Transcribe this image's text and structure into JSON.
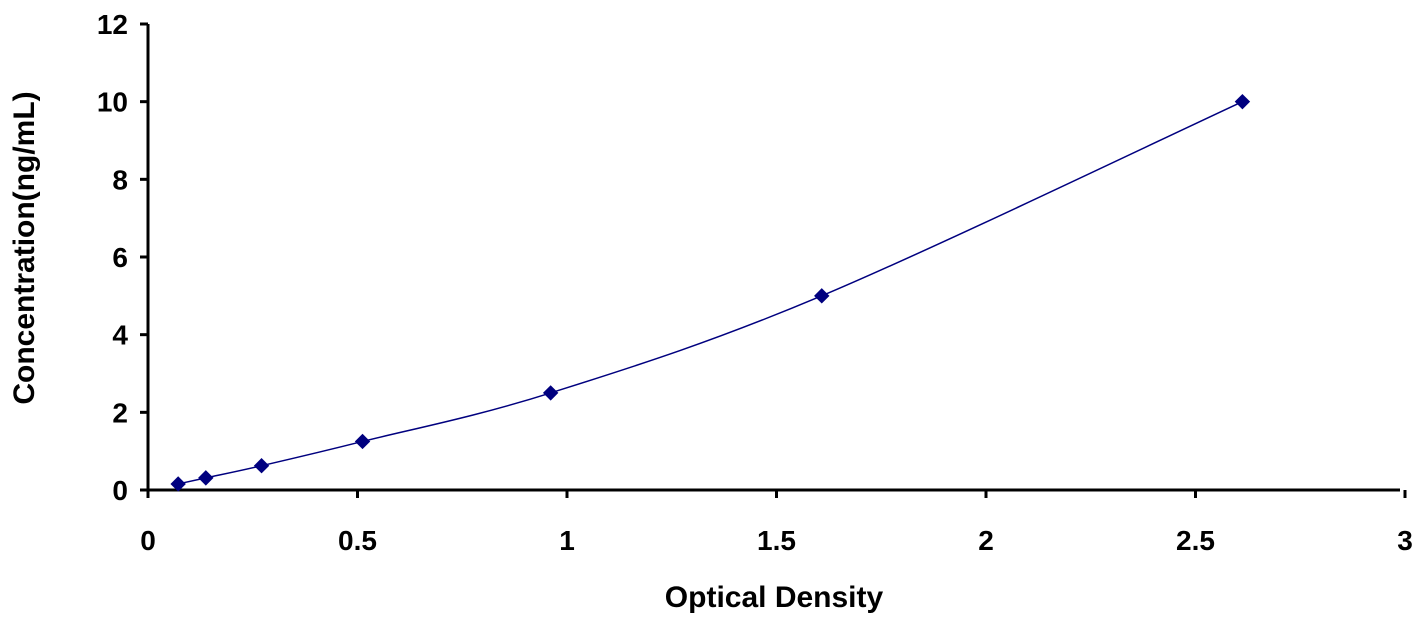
{
  "chart_data": {
    "type": "scatter",
    "title": "",
    "xlabel": "Optical Density",
    "ylabel": "Concentration(ng/mL)",
    "xlim": [
      0,
      3
    ],
    "ylim": [
      0,
      12
    ],
    "xticks": [
      "0",
      "0.5",
      "1",
      "1.5",
      "2",
      "2.5",
      "3"
    ],
    "yticks": [
      "0",
      "2",
      "4",
      "6",
      "8",
      "10",
      "12"
    ],
    "grid": false,
    "legend": "none",
    "series": [
      {
        "x": [
          0.072,
          0.138,
          0.271,
          0.512,
          0.961,
          1.608,
          2.612
        ],
        "y": [
          0.156,
          0.312,
          0.625,
          1.25,
          2.5,
          5,
          10
        ],
        "marker": "diamond",
        "line": "smooth",
        "color": "#00007f"
      }
    ]
  }
}
